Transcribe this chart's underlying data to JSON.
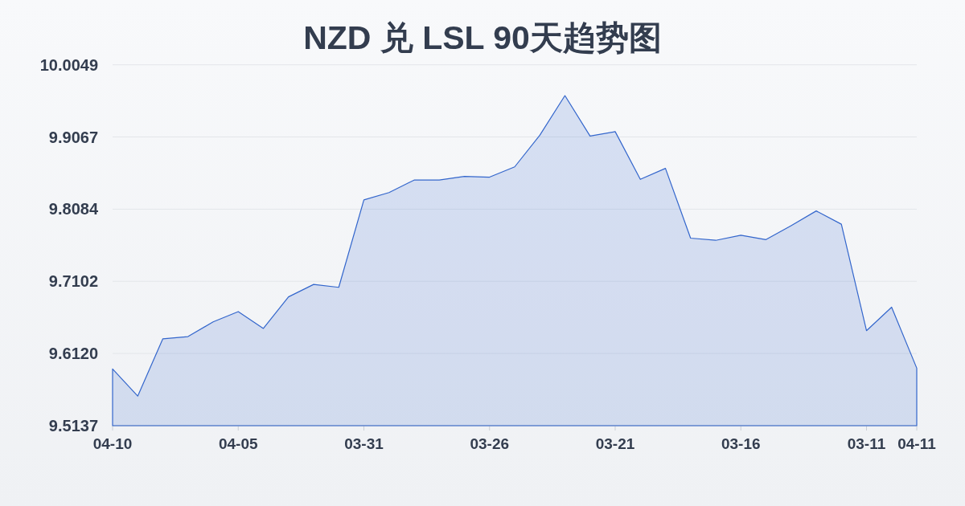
{
  "chart_data": {
    "type": "area",
    "title": "NZD 兑 LSL 90天趋势图",
    "categories": [
      "04-10",
      null,
      null,
      null,
      null,
      "04-05",
      null,
      null,
      null,
      null,
      "03-31",
      null,
      null,
      null,
      null,
      "03-26",
      null,
      null,
      null,
      null,
      "03-21",
      null,
      null,
      null,
      null,
      "03-16",
      null,
      null,
      null,
      null,
      "03-11",
      null,
      "04-11"
    ],
    "values": [
      9.591,
      9.554,
      9.632,
      9.635,
      9.655,
      9.669,
      9.646,
      9.689,
      9.706,
      9.702,
      9.821,
      9.831,
      9.848,
      9.848,
      9.853,
      9.852,
      9.866,
      9.909,
      9.963,
      9.908,
      9.914,
      9.849,
      9.864,
      9.769,
      9.766,
      9.773,
      9.767,
      9.786,
      9.806,
      9.788,
      9.643,
      9.675,
      9.592
    ],
    "color": "#3366cc",
    "ylim": [
      9.5137,
      10.0049
    ],
    "yticks": [
      9.5137,
      {
        "value": 9.612,
        "label": "9.6120"
      },
      9.7102,
      9.8084,
      9.9067,
      10.0049
    ],
    "grid": "y"
  }
}
